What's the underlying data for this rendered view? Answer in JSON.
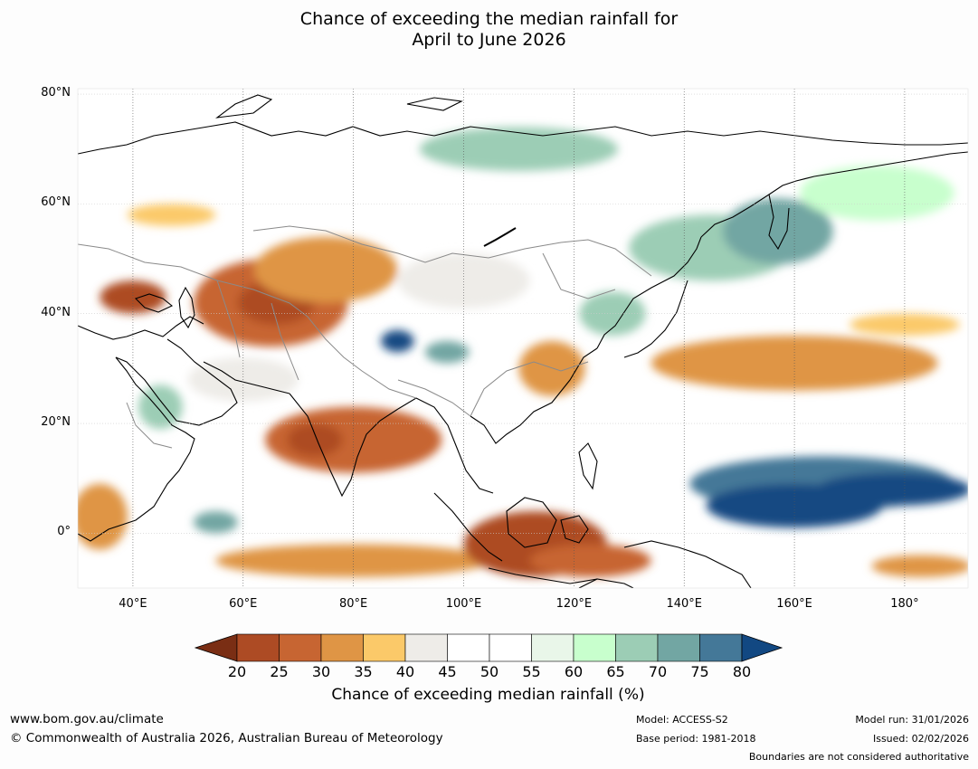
{
  "title": {
    "line1": "Chance of exceeding the median rainfall for",
    "line2": "April to June 2026"
  },
  "map": {
    "lat_labels": [
      "80°N",
      "60°N",
      "40°N",
      "20°N",
      "0°"
    ],
    "lat_values": [
      80,
      60,
      40,
      20,
      0
    ],
    "lon_labels": [
      "40°E",
      "60°E",
      "80°E",
      "100°E",
      "120°E",
      "140°E",
      "160°E",
      "180°"
    ],
    "lon_values": [
      40,
      60,
      80,
      100,
      120,
      140,
      160,
      180
    ],
    "extent": {
      "lon_min": 30,
      "lon_max": 191.5,
      "lat_min": -10,
      "lat_max": 81
    },
    "regions": [
      {
        "category": "20-25",
        "lon": 40,
        "lat": 43,
        "rx": 6,
        "ry": 3
      },
      {
        "category": "25-30",
        "lon": 65,
        "lat": 42,
        "rx": 14,
        "ry": 8
      },
      {
        "category": "20-25",
        "lon": 66,
        "lat": 42,
        "rx": 7,
        "ry": 4
      },
      {
        "category": "30-35",
        "lon": 75,
        "lat": 48,
        "rx": 13,
        "ry": 6
      },
      {
        "category": "35-40",
        "lon": 47,
        "lat": 58,
        "rx": 8,
        "ry": 2
      },
      {
        "category": "25-30",
        "lon": 80,
        "lat": 17,
        "rx": 16,
        "ry": 6
      },
      {
        "category": "20-25",
        "lon": 73,
        "lat": 17,
        "rx": 5,
        "ry": 3
      },
      {
        "category": "30-35",
        "lon": 34,
        "lat": 3,
        "rx": 5,
        "ry": 6
      },
      {
        "category": "30-35",
        "lon": 80,
        "lat": -5,
        "rx": 25,
        "ry": 3
      },
      {
        "category": "20-25",
        "lon": 113,
        "lat": -2,
        "rx": 13,
        "ry": 6
      },
      {
        "category": "25-30",
        "lon": 123,
        "lat": -5,
        "rx": 11,
        "ry": 3
      },
      {
        "category": "30-35",
        "lon": 116,
        "lat": 30,
        "rx": 6,
        "ry": 5
      },
      {
        "category": "30-35",
        "lon": 160,
        "lat": 31,
        "rx": 26,
        "ry": 5
      },
      {
        "category": "35-40",
        "lon": 180,
        "lat": 38,
        "rx": 10,
        "ry": 2
      },
      {
        "category": "30-35",
        "lon": 183,
        "lat": -6,
        "rx": 9,
        "ry": 2
      },
      {
        "category": "75-80",
        "lon": 165,
        "lat": 9,
        "rx": 24,
        "ry": 5
      },
      {
        "category": ">80",
        "lon": 160,
        "lat": 5,
        "rx": 16,
        "ry": 4
      },
      {
        "category": ">80",
        "lon": 178,
        "lat": 8,
        "rx": 14,
        "ry": 3
      },
      {
        "category": "65-70",
        "lon": 145,
        "lat": 52,
        "rx": 15,
        "ry": 6
      },
      {
        "category": "70-75",
        "lon": 157,
        "lat": 55,
        "rx": 10,
        "ry": 6
      },
      {
        "category": "65-70",
        "lon": 127,
        "lat": 40,
        "rx": 6,
        "ry": 4
      },
      {
        "category": ">80",
        "lon": 88,
        "lat": 35,
        "rx": 3,
        "ry": 2
      },
      {
        "category": "70-75",
        "lon": 97,
        "lat": 33,
        "rx": 4,
        "ry": 2
      },
      {
        "category": "70-75",
        "lon": 55,
        "lat": 2,
        "rx": 4,
        "ry": 2
      },
      {
        "category": "65-70",
        "lon": 45,
        "lat": 23,
        "rx": 4,
        "ry": 4
      },
      {
        "category": "65-70",
        "lon": 110,
        "lat": 70,
        "rx": 18,
        "ry": 4
      },
      {
        "category": "60-65",
        "lon": 175,
        "lat": 62,
        "rx": 14,
        "ry": 5
      },
      {
        "category": "40-45",
        "lon": 100,
        "lat": 46,
        "rx": 12,
        "ry": 5
      },
      {
        "category": "40-45",
        "lon": 60,
        "lat": 28,
        "rx": 10,
        "ry": 4
      }
    ]
  },
  "colorbar": {
    "ticks": [
      "20",
      "25",
      "30",
      "35",
      "40",
      "45",
      "50",
      "55",
      "60",
      "65",
      "70",
      "75",
      "80"
    ],
    "colors": [
      "#7a2e14",
      "#ad4b24",
      "#c76532",
      "#df9545",
      "#fbc969",
      "#eeece8",
      "#ffffff",
      "#ffffff",
      "#e9f6e9",
      "#c8ffcd",
      "#9ccdb5",
      "#72a6a3",
      "#447898",
      "#124882"
    ],
    "label": "Chance of exceeding median rainfall (%)"
  },
  "footer": {
    "url": "www.bom.gov.au/climate",
    "copyright": "© Commonwealth of Australia 2026, Australian Bureau of Meteorology",
    "model": "Model: ACCESS-S2",
    "base_period": "Base period: 1981-2018",
    "model_run": "Model run: 31/01/2026",
    "issued": "Issued: 02/02/2026",
    "disclaimer": "Boundaries are not considered authoritative"
  }
}
